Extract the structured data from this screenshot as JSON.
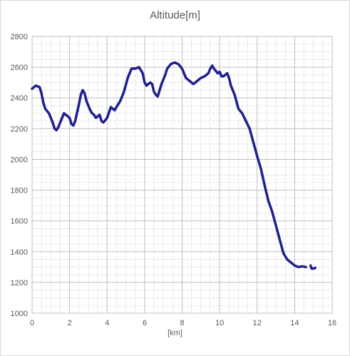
{
  "chart_data": {
    "type": "line",
    "title": "Altitude[m]",
    "xlabel": "[km]",
    "ylabel": "",
    "xlim": [
      0,
      16
    ],
    "ylim": [
      1000,
      2800
    ],
    "x_ticks": [
      "0",
      "2",
      "4",
      "6",
      "8",
      "10",
      "12",
      "14",
      "16"
    ],
    "y_ticks": [
      "1000",
      "1200",
      "1400",
      "1600",
      "1800",
      "2000",
      "2200",
      "2400",
      "2600",
      "2800"
    ],
    "grid": true,
    "legend": "none",
    "line_color": "#1f1f8f",
    "series": [
      {
        "x": [
          0,
          0.2,
          0.4,
          0.5,
          0.6,
          0.7,
          0.9,
          1.1,
          1.2,
          1.3,
          1.4,
          1.5,
          1.6,
          1.7,
          1.8,
          2.0,
          2.1,
          2.2,
          2.3,
          2.5,
          2.6,
          2.7,
          2.8,
          2.9,
          3.0,
          3.1,
          3.2,
          3.3,
          3.4,
          3.5,
          3.6,
          3.7,
          3.8,
          4.0,
          4.2,
          4.4,
          4.6,
          4.7,
          4.9,
          5.1,
          5.3,
          5.5,
          5.7,
          5.9,
          6.0,
          6.1,
          6.2,
          6.3,
          6.4,
          6.5,
          6.6,
          6.7,
          6.8,
          6.9,
          7.1,
          7.2,
          7.4,
          7.6,
          7.8,
          8.0,
          8.1,
          8.2,
          8.4,
          8.6,
          8.8,
          9.0,
          9.2,
          9.4,
          9.5,
          9.6,
          9.7,
          9.9,
          10.0,
          10.1,
          10.2,
          10.3,
          10.4,
          10.5,
          10.6,
          10.8,
          11.0,
          11.2,
          11.4,
          11.6,
          11.8,
          12.0,
          12.2,
          12.4,
          12.6,
          12.8,
          13.0,
          13.2,
          13.4,
          13.6,
          13.8,
          14.0,
          14.2,
          14.4,
          14.6
        ],
        "values": [
          2460,
          2480,
          2470,
          2430,
          2370,
          2330,
          2300,
          2240,
          2200,
          2190,
          2210,
          2240,
          2270,
          2300,
          2290,
          2270,
          2230,
          2220,
          2250,
          2360,
          2420,
          2450,
          2430,
          2380,
          2350,
          2320,
          2300,
          2290,
          2270,
          2280,
          2290,
          2250,
          2240,
          2270,
          2340,
          2320,
          2360,
          2380,
          2440,
          2530,
          2590,
          2590,
          2600,
          2560,
          2500,
          2480,
          2490,
          2500,
          2490,
          2440,
          2420,
          2410,
          2450,
          2490,
          2550,
          2590,
          2620,
          2630,
          2620,
          2590,
          2560,
          2530,
          2510,
          2490,
          2510,
          2530,
          2540,
          2560,
          2590,
          2610,
          2590,
          2560,
          2570,
          2540,
          2540,
          2550,
          2560,
          2530,
          2480,
          2420,
          2330,
          2300,
          2250,
          2200,
          2110,
          2020,
          1940,
          1830,
          1730,
          1660,
          1570,
          1480,
          1390,
          1350,
          1330,
          1310,
          1300,
          1305,
          1300
        ]
      },
      {
        "x": [
          14.85,
          14.9,
          15.0,
          15.1
        ],
        "values": [
          1310,
          1290,
          1290,
          1295
        ]
      }
    ]
  }
}
